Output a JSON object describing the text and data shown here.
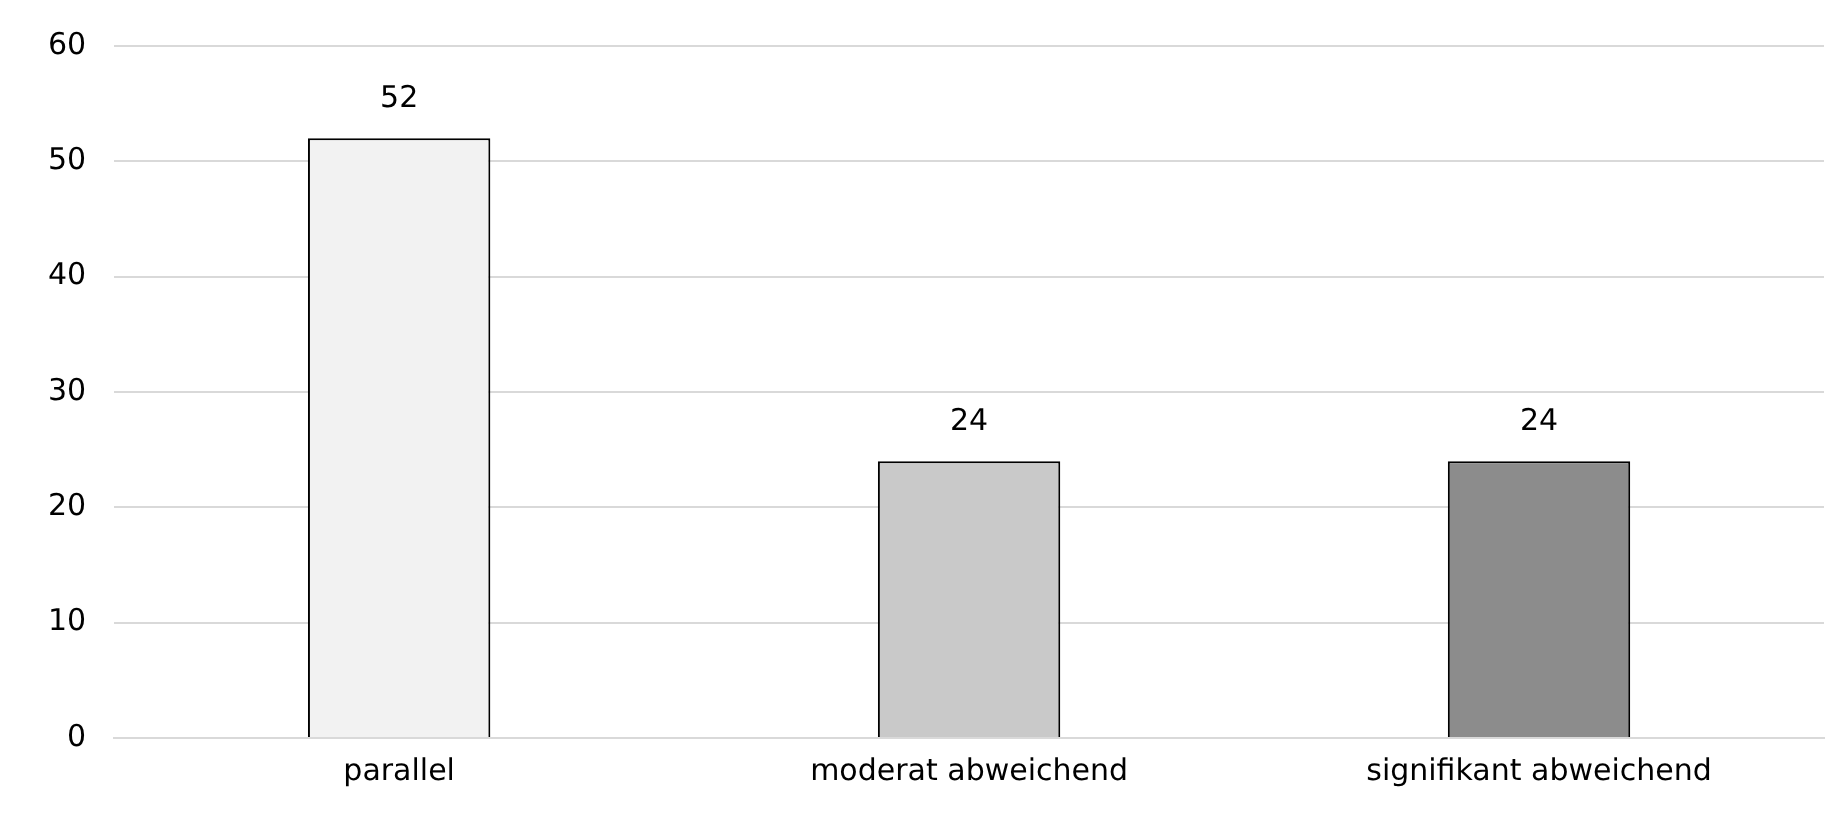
{
  "chart_data": {
    "type": "bar",
    "categories": [
      "parallel",
      "moderat abweichend",
      "signifikant abweichend"
    ],
    "values": [
      52,
      24,
      24
    ],
    "colors": [
      "#f2f2f2",
      "#c9c9c9",
      "#8c8c8c"
    ],
    "ylim": [
      0,
      60
    ],
    "yticks": [
      0,
      10,
      20,
      30,
      40,
      50,
      60
    ],
    "grid": "y",
    "data_labels": true,
    "legend": false
  }
}
